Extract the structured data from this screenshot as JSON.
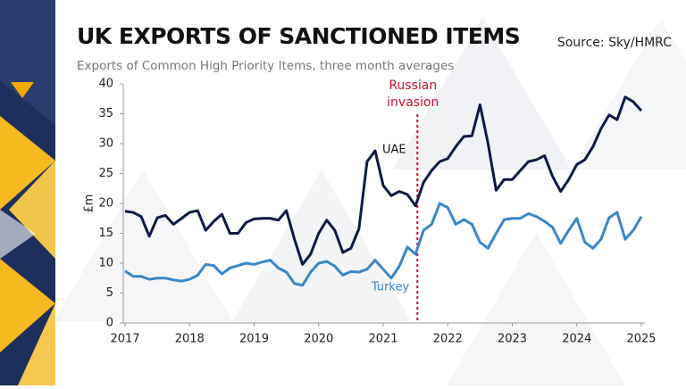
{
  "chart_data": {
    "type": "line",
    "title": "UK EXPORTS OF SANCTIONED ITEMS",
    "subtitle": "Exports of Common High Priority Items, three month averages",
    "source": "Source: Sky/HMRC",
    "y_label": "£m",
    "x": [
      2017,
      2017.125,
      2017.25,
      2017.375,
      2017.5,
      2017.625,
      2017.75,
      2017.875,
      2018,
      2018.125,
      2018.25,
      2018.375,
      2018.5,
      2018.625,
      2018.75,
      2018.875,
      2019,
      2019.125,
      2019.25,
      2019.375,
      2019.5,
      2019.625,
      2019.75,
      2019.875,
      2020,
      2020.125,
      2020.25,
      2020.375,
      2020.5,
      2020.625,
      2020.75,
      2020.875,
      2021,
      2021.125,
      2021.25,
      2021.375,
      2021.5,
      2021.625,
      2021.75,
      2021.875,
      2022,
      2022.125,
      2022.25,
      2022.375,
      2022.5,
      2022.625,
      2022.75,
      2022.875,
      2023,
      2023.125,
      2023.25,
      2023.375,
      2023.5,
      2023.625,
      2023.75,
      2023.875,
      2024,
      2024.125,
      2024.25,
      2024.375,
      2024.5,
      2024.625,
      2024.75,
      2024.875,
      2025
    ],
    "series": [
      {
        "name": "UAE",
        "color": "#0d1b45",
        "values": [
          18.7,
          18.5,
          17.8,
          14.5,
          17.6,
          18,
          16.5,
          17.5,
          18.5,
          18.8,
          15.5,
          17,
          18.2,
          15,
          15,
          16.8,
          17.4,
          17.5,
          17.5,
          17.2,
          18.8,
          14,
          9.8,
          11.5,
          15,
          17.2,
          15.5,
          11.8,
          12.5,
          15.8,
          27,
          28.8,
          23,
          21.3,
          22,
          21.5,
          19.6,
          23.5,
          25.5,
          27,
          27.5,
          29.5,
          31.2,
          31.3,
          36.5,
          30,
          22.2,
          24,
          24,
          25.5,
          27,
          27.3,
          28,
          24.5,
          22,
          24,
          26.5,
          27.3,
          29.5,
          32.5,
          34.8,
          34,
          37.8,
          37,
          35.5
        ]
      },
      {
        "name": "Turkey",
        "color": "#3a86c8",
        "values": [
          8.7,
          7.8,
          7.8,
          7.3,
          7.5,
          7.5,
          7.2,
          7,
          7.3,
          8,
          9.8,
          9.6,
          8.2,
          9.2,
          9.6,
          10,
          9.8,
          10.2,
          10.5,
          9.2,
          8.5,
          6.6,
          6.3,
          8.5,
          10,
          10.3,
          9.5,
          8,
          8.6,
          8.5,
          9,
          10.5,
          9,
          7.5,
          9.5,
          12.7,
          11.5,
          15.5,
          16.5,
          20,
          19.3,
          16.5,
          17.3,
          16.5,
          13.5,
          12.5,
          15,
          17.3,
          17.5,
          17.5,
          18.3,
          17.8,
          17,
          16,
          13.3,
          15.5,
          17.5,
          13.5,
          12.5,
          14,
          17.6,
          18.5,
          14,
          15.5,
          17.8
        ]
      }
    ],
    "annotation": {
      "text": [
        "Russian",
        "invasion"
      ],
      "x": 2021.53,
      "color": "#c8102e"
    },
    "xlim": [
      2017,
      2025
    ],
    "xticks": [
      2017,
      2018,
      2019,
      2020,
      2021,
      2022,
      2023,
      2024,
      2025
    ],
    "ylim": [
      0,
      40
    ],
    "yticks": [
      0,
      5,
      10,
      15,
      20,
      25,
      30,
      35,
      40
    ],
    "grid": false
  }
}
